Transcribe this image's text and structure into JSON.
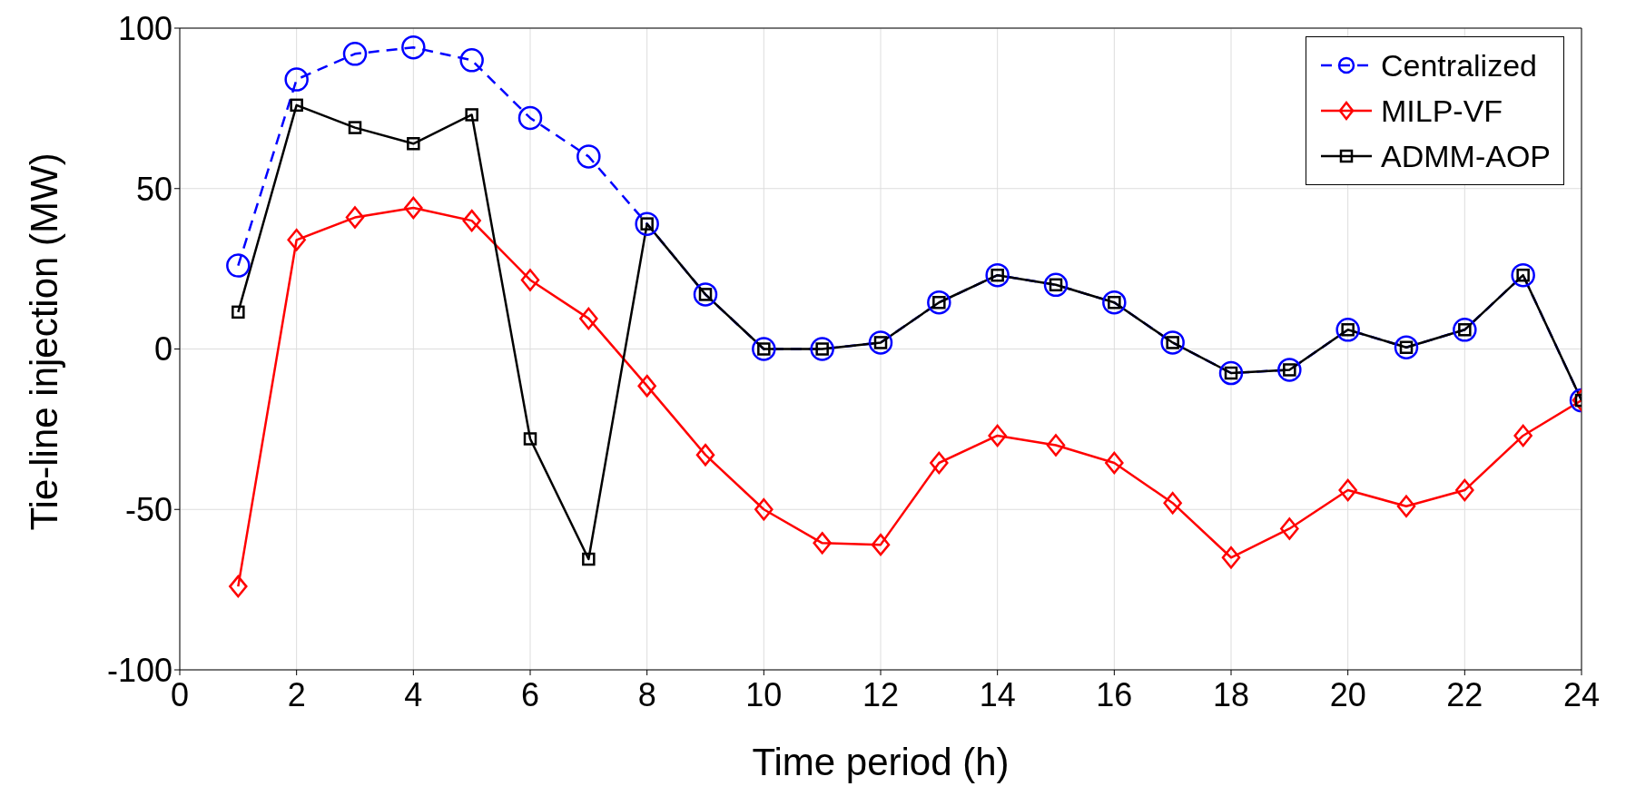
{
  "chart_data": {
    "type": "line",
    "xlabel": "Time period (h)",
    "ylabel": "Tie-line injection (MW)",
    "x": [
      1,
      2,
      3,
      4,
      5,
      6,
      7,
      8,
      9,
      10,
      11,
      12,
      13,
      14,
      15,
      16,
      17,
      18,
      19,
      20,
      21,
      22,
      23,
      24
    ],
    "series": [
      {
        "name": "Centralized",
        "color": "#0000ff",
        "marker": "circle",
        "line_style": "dashed",
        "values": [
          26,
          84,
          92,
          94,
          90,
          72,
          60,
          39,
          17,
          0,
          0,
          2,
          14.5,
          23,
          20,
          14.5,
          2,
          -7.5,
          -6.5,
          6,
          0.5,
          6,
          23,
          -16
        ]
      },
      {
        "name": "MILP-VF",
        "color": "#ff0000",
        "marker": "diamond",
        "line_style": "solid",
        "values": [
          -74,
          34,
          41,
          44,
          40,
          21.5,
          9.5,
          -11.5,
          -33,
          -50,
          -60.5,
          -61,
          -35.5,
          -27,
          -30,
          -35.5,
          -48,
          -65,
          -56,
          -44,
          -49,
          -44,
          -27,
          -16
        ]
      },
      {
        "name": "ADMM-AOP",
        "color": "#000000",
        "marker": "square",
        "line_style": "solid",
        "values": [
          11.5,
          76,
          69,
          64,
          73,
          -28,
          -65.5,
          39,
          17,
          0,
          0,
          2,
          14.5,
          23,
          20,
          14.5,
          2,
          -7.5,
          -6.5,
          6,
          0.5,
          6,
          23,
          -16
        ]
      }
    ],
    "xlim": [
      0,
      24
    ],
    "xticks": [
      0,
      2,
      4,
      6,
      8,
      10,
      12,
      14,
      16,
      18,
      20,
      22,
      24
    ],
    "ylim": [
      -100,
      100
    ],
    "yticks": [
      -100,
      -50,
      0,
      50,
      100
    ],
    "grid": true,
    "legend": "top right"
  }
}
